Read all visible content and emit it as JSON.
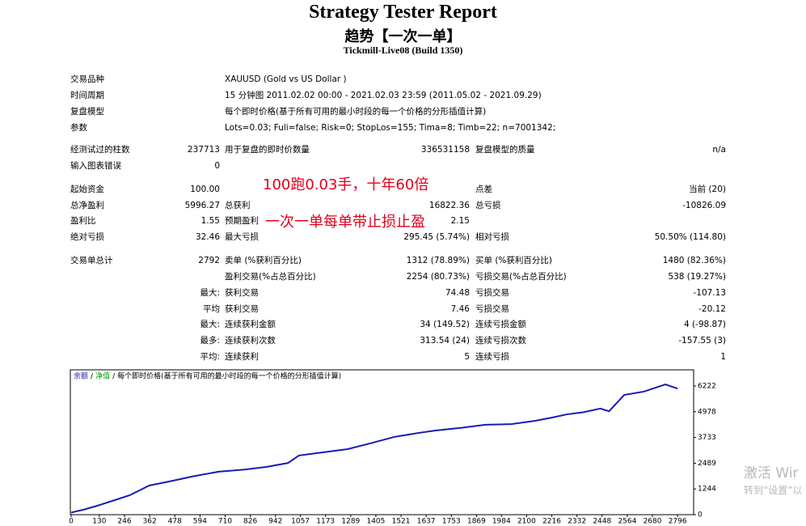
{
  "header": {
    "title": "Strategy Tester Report",
    "subtitle": "趋势【一次一单】",
    "server": "Tickmill-Live08 (Build 1350)"
  },
  "info": {
    "rows": [
      [
        "交易品种",
        "XAUUSD (Gold vs US Dollar )"
      ],
      [
        "时间周期",
        "15 分钟图 2011.02.02 00:00 - 2021.02.03 23:59 (2011.05.02 - 2021.09.29)"
      ],
      [
        "复盘模型",
        "每个即时价格(基于所有可用的最小时段的每一个价格的分形插值计算)"
      ],
      [
        "参数",
        "Lots=0.03; Fuli=false; Risk=0; StopLos=155; Tima=8; Timb=22; n=7001342;"
      ]
    ]
  },
  "stats": {
    "rows": [
      [
        "经测试过的柱数",
        "237713",
        "用于复盘的即时价数量",
        "336531158",
        "复盘模型的质量",
        "n/a"
      ],
      [
        "输入图表错误",
        "0",
        null,
        null,
        null,
        null
      ],
      [
        "起始资金",
        "100.00",
        null,
        null,
        "点差",
        "当前 (20)"
      ],
      [
        "总净盈利",
        "5996.27",
        "总获利",
        "16822.36",
        "总亏损",
        "-10826.09"
      ],
      [
        "盈利比",
        "1.55",
        "预期盈利",
        "2.15",
        null,
        null
      ],
      [
        "绝对亏损",
        "32.46",
        "最大亏损",
        "295.45 (5.74%)",
        "相对亏损",
        "50.50% (114.80)"
      ],
      [
        "交易单总计",
        "2792",
        "卖单 (%获利百分比)",
        "1312 (78.89%)",
        "买单 (%获利百分比)",
        "1480 (82.36%)"
      ],
      [
        null,
        null,
        "盈利交易(%占总百分比)",
        "2254 (80.73%)",
        "亏损交易(%占总百分比)",
        "538 (19.27%)"
      ],
      [
        null,
        "最大:",
        "获利交易",
        "74.48",
        "亏损交易",
        "-107.13"
      ],
      [
        null,
        "平均",
        "获利交易",
        "7.46",
        "亏损交易",
        "-20.12"
      ],
      [
        null,
        "最大:",
        "连续获利金额",
        "34 (149.52)",
        "连续亏损金额",
        "4 (-98.87)"
      ],
      [
        null,
        "最多:",
        "连续获利次数",
        "313.54 (24)",
        "连续亏损次数",
        "-157.55 (3)"
      ],
      [
        null,
        "平均:",
        "连续获利",
        "5",
        "连续亏损",
        "1"
      ]
    ]
  },
  "annotations": [
    "100跑0.03手，十年60倍",
    "一次一单每单带止损止盈"
  ],
  "watermark": [
    "激活 Wir",
    "转到“设置”以"
  ],
  "chart_data": {
    "type": "line",
    "legend_separator": "/",
    "equity_legend": {
      "name": "净值",
      "color": "#00a000"
    },
    "caption": "每个即时价格(基于所有可用的最小时段的每一个价格的分形插值计算)",
    "x": [
      0,
      60,
      120,
      200,
      270,
      360,
      450,
      560,
      680,
      800,
      900,
      1000,
      1050,
      1150,
      1275,
      1380,
      1490,
      1600,
      1680,
      1800,
      1910,
      2030,
      2140,
      2220,
      2285,
      2360,
      2440,
      2480,
      2550,
      2640,
      2740,
      2796
    ],
    "series": [
      {
        "name": "余额",
        "color": "#1a1ab4",
        "values": [
          100,
          250,
          430,
          700,
          940,
          1410,
          1600,
          1850,
          2080,
          2180,
          2310,
          2500,
          2860,
          3000,
          3170,
          3450,
          3760,
          3950,
          4070,
          4200,
          4350,
          4380,
          4540,
          4700,
          4850,
          4950,
          5130,
          5000,
          5790,
          5950,
          6300,
          6096
        ]
      }
    ],
    "xlim": [
      0,
      2870
    ],
    "ylim": [
      0,
      7005
    ],
    "xticks": [
      0,
      130,
      246,
      362,
      478,
      594,
      710,
      826,
      942,
      1057,
      1173,
      1289,
      1405,
      1521,
      1637,
      1753,
      1869,
      1984,
      2100,
      2216,
      2332,
      2448,
      2564,
      2680,
      2796
    ],
    "yticks": [
      0,
      1244,
      2489,
      3733,
      4978,
      6222
    ]
  }
}
